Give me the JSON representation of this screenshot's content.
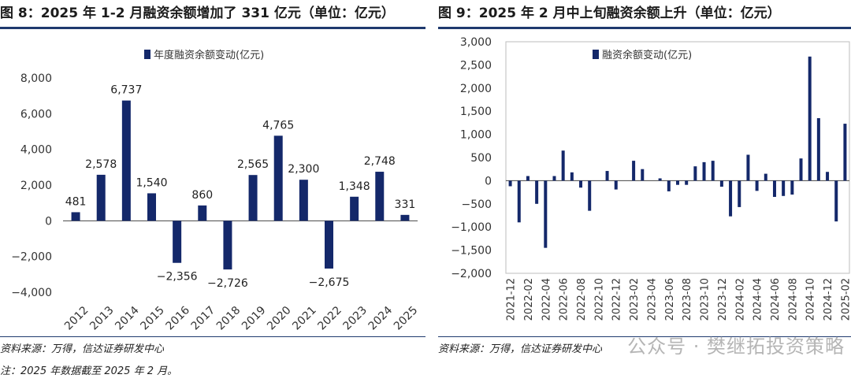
{
  "left": {
    "title": "图 8：2025 年 1-2 月融资余额增加了 331 亿元（单位：亿元）",
    "source": "资料来源：万得，信达证券研发中心",
    "note": "注：2025 年数据截至 2025 年 2 月。"
  },
  "right": {
    "title": "图 9：2025 年 2 月中上旬融资余额上升（单位：亿元）",
    "source": "资料来源：万得，信达证券研发中心"
  },
  "watermark": "公众号 · 樊继拓投资策略",
  "colors": {
    "bar": "#14286a",
    "rule": "#1f3a6e",
    "axis": "#444444"
  },
  "chart_data": [
    {
      "type": "bar",
      "categories": [
        "2012",
        "2013",
        "2014",
        "2015",
        "2016",
        "2017",
        "2018",
        "2019",
        "2020",
        "2021",
        "2022",
        "2023",
        "2024",
        "2025"
      ],
      "series": [
        {
          "name": "年度融资余额变动(亿元)",
          "values": [
            481,
            2578,
            6737,
            1540,
            -2356,
            860,
            -2726,
            2565,
            4765,
            2300,
            -2675,
            1348,
            2748,
            331
          ]
        }
      ],
      "value_labels": [
        "481",
        "2,578",
        "6,737",
        "1,540",
        "−2,356",
        "860",
        "−2,726",
        "2,565",
        "4,765",
        "2,300",
        "−2,675",
        "1,348",
        "2,748",
        "331"
      ],
      "ylim": [
        -4000,
        8000
      ],
      "yticks": [
        -4000,
        -2000,
        0,
        2000,
        4000,
        6000,
        8000
      ],
      "ytick_labels": [
        "−4,000",
        "−2,000",
        "0",
        "2,000",
        "4,000",
        "6,000",
        "8,000"
      ],
      "legend": "top-center",
      "grid": false
    },
    {
      "type": "bar",
      "categories": [
        "2021-12",
        "2022-01",
        "2022-02",
        "2022-03",
        "2022-04",
        "2022-05",
        "2022-06",
        "2022-07",
        "2022-08",
        "2022-09",
        "2022-10",
        "2022-11",
        "2022-12",
        "2023-01",
        "2023-02",
        "2023-03",
        "2023-04",
        "2023-05",
        "2023-06",
        "2023-07",
        "2023-08",
        "2023-09",
        "2023-10",
        "2023-11",
        "2023-12",
        "2024-01",
        "2024-02",
        "2024-03",
        "2024-04",
        "2024-05",
        "2024-06",
        "2024-07",
        "2024-08",
        "2024-09",
        "2024-10",
        "2024-11",
        "2024-12",
        "2025-01",
        "2025-02"
      ],
      "xtick_labels": [
        "2021-12",
        "2022-02",
        "2022-04",
        "2022-06",
        "2022-08",
        "2022-10",
        "2022-12",
        "2023-02",
        "2023-04",
        "2023-06",
        "2023-08",
        "2023-10",
        "2023-12",
        "2024-02",
        "2024-04",
        "2024-06",
        "2024-08",
        "2024-10",
        "2024-12",
        "2025-02"
      ],
      "series": [
        {
          "name": "融资余额变动(亿元)",
          "values": [
            -120,
            -900,
            100,
            -500,
            -1450,
            100,
            650,
            180,
            -150,
            -650,
            0,
            210,
            -190,
            0,
            430,
            250,
            0,
            50,
            -230,
            -90,
            -90,
            310,
            400,
            430,
            -130,
            -770,
            -570,
            560,
            -220,
            150,
            -350,
            -330,
            -300,
            480,
            2680,
            1350,
            190,
            -880,
            1230
          ]
        }
      ],
      "ylim": [
        -2000,
        3000
      ],
      "yticks": [
        -2000,
        -1500,
        -1000,
        -500,
        0,
        500,
        1000,
        1500,
        2000,
        2500,
        3000
      ],
      "ytick_labels": [
        "−2,000",
        "−1,500",
        "−1,000",
        "−500",
        "0",
        "500",
        "1,000",
        "1,500",
        "2,000",
        "2,500",
        "3,000"
      ],
      "legend": "top-center",
      "grid": false
    }
  ]
}
